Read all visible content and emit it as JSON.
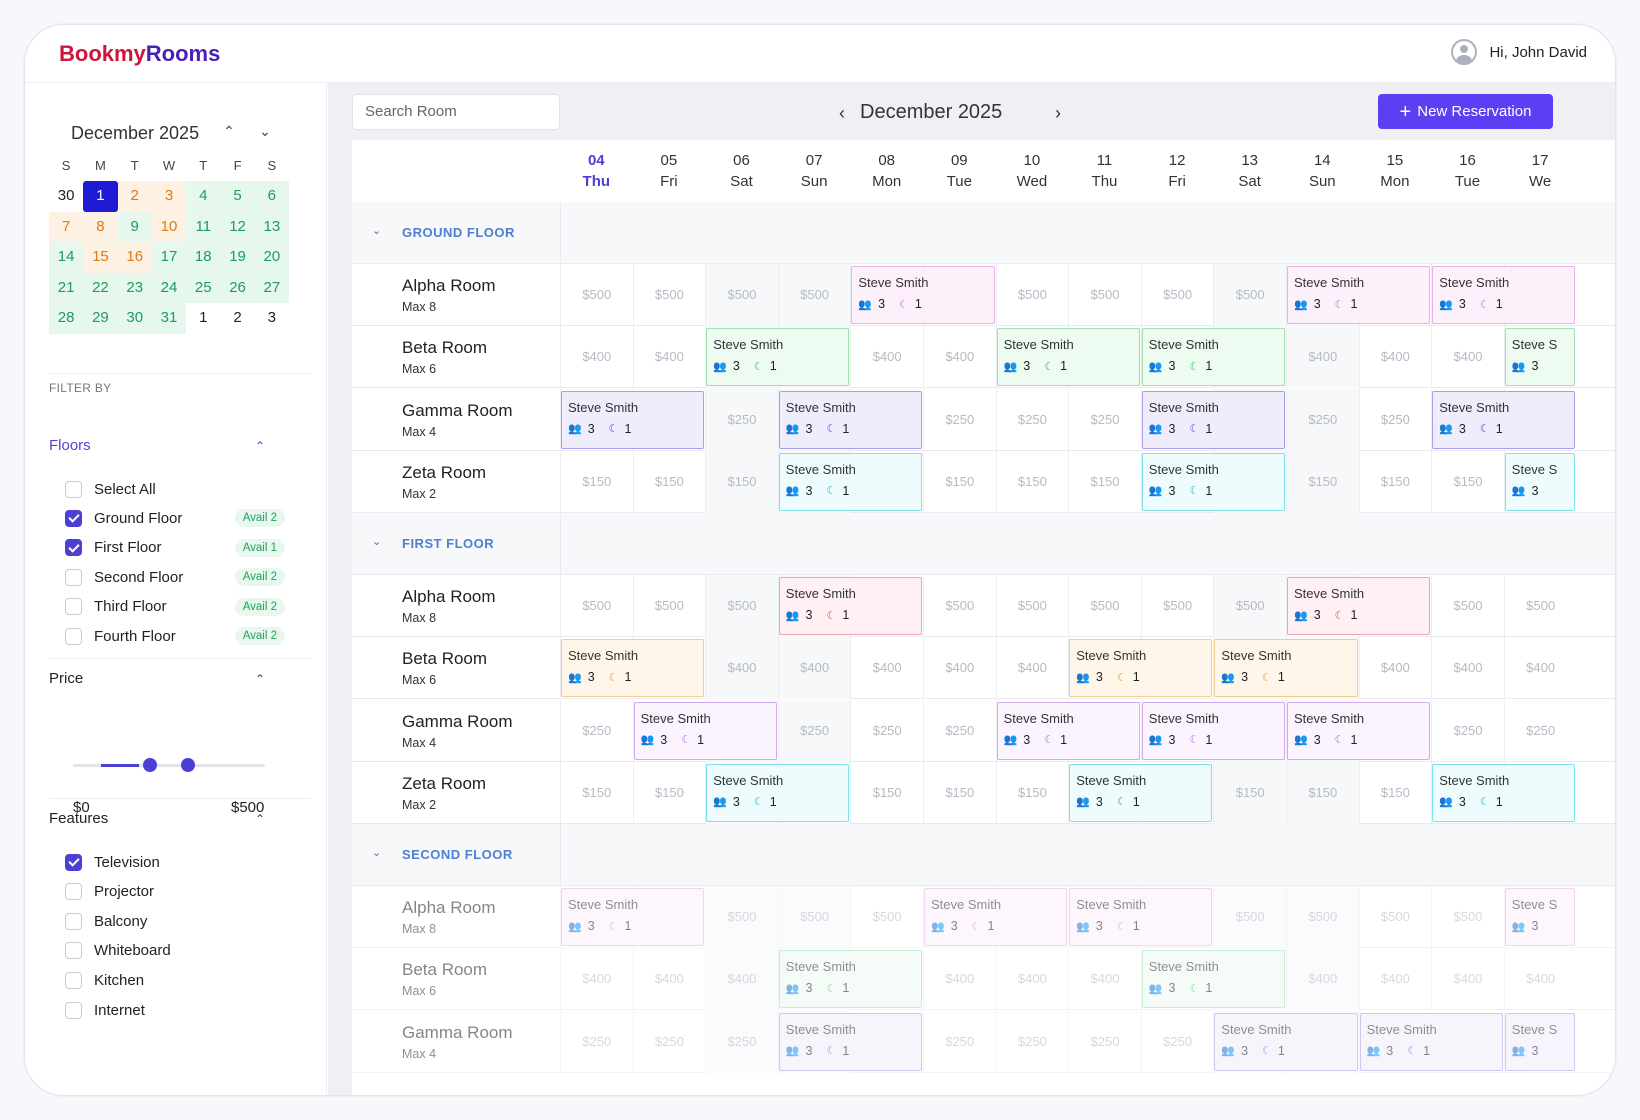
{
  "brand": {
    "part1": "Bookmy",
    "part2": "Rooms"
  },
  "user": {
    "greeting": "Hi, John David"
  },
  "mini_calendar": {
    "title": "December 2025",
    "dows": [
      "S",
      "M",
      "T",
      "W",
      "T",
      "F",
      "S"
    ],
    "weeks": [
      [
        {
          "d": "30",
          "s": ""
        },
        {
          "d": "1",
          "s": "sel"
        },
        {
          "d": "2",
          "s": "orange"
        },
        {
          "d": "3",
          "s": "orange"
        },
        {
          "d": "4",
          "s": "green"
        },
        {
          "d": "5",
          "s": "green"
        },
        {
          "d": "6",
          "s": "green"
        }
      ],
      [
        {
          "d": "7",
          "s": "orange"
        },
        {
          "d": "8",
          "s": "orange"
        },
        {
          "d": "9",
          "s": "green"
        },
        {
          "d": "10",
          "s": "orange"
        },
        {
          "d": "11",
          "s": "green"
        },
        {
          "d": "12",
          "s": "green"
        },
        {
          "d": "13",
          "s": "green"
        }
      ],
      [
        {
          "d": "14",
          "s": "green"
        },
        {
          "d": "15",
          "s": "orange"
        },
        {
          "d": "16",
          "s": "orange"
        },
        {
          "d": "17",
          "s": "green"
        },
        {
          "d": "18",
          "s": "green"
        },
        {
          "d": "19",
          "s": "green"
        },
        {
          "d": "20",
          "s": "green"
        }
      ],
      [
        {
          "d": "21",
          "s": "green"
        },
        {
          "d": "22",
          "s": "green"
        },
        {
          "d": "23",
          "s": "green"
        },
        {
          "d": "24",
          "s": "green"
        },
        {
          "d": "25",
          "s": "green"
        },
        {
          "d": "26",
          "s": "green"
        },
        {
          "d": "27",
          "s": "green"
        }
      ],
      [
        {
          "d": "28",
          "s": "green"
        },
        {
          "d": "29",
          "s": "green"
        },
        {
          "d": "30",
          "s": "green"
        },
        {
          "d": "31",
          "s": "green"
        },
        {
          "d": "1",
          "s": ""
        },
        {
          "d": "2",
          "s": ""
        },
        {
          "d": "3",
          "s": ""
        }
      ]
    ]
  },
  "filters": {
    "label": "FILTER BY",
    "floors_title": "Floors",
    "floors": [
      {
        "label": "Select All",
        "checked": false,
        "avail": ""
      },
      {
        "label": "Ground Floor",
        "checked": true,
        "avail": "Avail 2"
      },
      {
        "label": "First Floor",
        "checked": true,
        "avail": "Avail 1"
      },
      {
        "label": "Second Floor",
        "checked": false,
        "avail": "Avail 2"
      },
      {
        "label": "Third Floor",
        "checked": false,
        "avail": "Avail 2"
      },
      {
        "label": "Fourth Floor",
        "checked": false,
        "avail": "Avail 2"
      }
    ],
    "price_title": "Price",
    "price_min": "$0",
    "price_max": "$500",
    "features_title": "Features",
    "features": [
      {
        "label": "Television",
        "checked": true
      },
      {
        "label": "Projector",
        "checked": false
      },
      {
        "label": "Balcony",
        "checked": false
      },
      {
        "label": "Whiteboard",
        "checked": false
      },
      {
        "label": "Kitchen",
        "checked": false
      },
      {
        "label": "Internet",
        "checked": false
      }
    ]
  },
  "toolbar": {
    "search_placeholder": "Search Room",
    "month": "December 2025",
    "new_label": "New Reservation"
  },
  "days": [
    {
      "n": "04",
      "w": "Thu"
    },
    {
      "n": "05",
      "w": "Fri"
    },
    {
      "n": "06",
      "w": "Sat"
    },
    {
      "n": "07",
      "w": "Sun"
    },
    {
      "n": "08",
      "w": "Mon"
    },
    {
      "n": "09",
      "w": "Tue"
    },
    {
      "n": "10",
      "w": "Wed"
    },
    {
      "n": "11",
      "w": "Thu"
    },
    {
      "n": "12",
      "w": "Fri"
    },
    {
      "n": "13",
      "w": "Sat"
    },
    {
      "n": "14",
      "w": "Sun"
    },
    {
      "n": "15",
      "w": "Mon"
    },
    {
      "n": "16",
      "w": "Tue"
    },
    {
      "n": "17",
      "w": "We"
    }
  ],
  "floors_grid": [
    {
      "name": "GROUND FLOOR",
      "rooms": [
        {
          "name": "Alpha Room",
          "max": "Max 8",
          "price": "$500",
          "color": "pink",
          "bookings": [
            {
              "start": 4,
              "span": 2,
              "guest": "Steve Smith",
              "guests": "3",
              "nights": "1"
            },
            {
              "start": 10,
              "span": 2,
              "guest": "Steve Smith",
              "guests": "3",
              "nights": "1"
            },
            {
              "start": 12,
              "span": 2,
              "guest": "Steve Smith",
              "guests": "3",
              "nights": "1"
            }
          ]
        },
        {
          "name": "Beta Room",
          "max": "Max 6",
          "price": "$400",
          "color": "green",
          "bookings": [
            {
              "start": 2,
              "span": 2,
              "guest": "Steve Smith",
              "guests": "3",
              "nights": "1"
            },
            {
              "start": 6,
              "span": 2,
              "guest": "Steve Smith",
              "guests": "3",
              "nights": "1"
            },
            {
              "start": 8,
              "span": 2,
              "guest": "Steve Smith",
              "guests": "3",
              "nights": "1"
            },
            {
              "start": 13,
              "span": 1,
              "guest": "Steve S",
              "guests": "3",
              "nights": ""
            }
          ]
        },
        {
          "name": "Gamma Room",
          "max": "Max 4",
          "price": "$250",
          "color": "purple",
          "bookings": [
            {
              "start": 0,
              "span": 2,
              "guest": "Steve Smith",
              "guests": "3",
              "nights": "1"
            },
            {
              "start": 3,
              "span": 2,
              "guest": "Steve Smith",
              "guests": "3",
              "nights": "1"
            },
            {
              "start": 8,
              "span": 2,
              "guest": "Steve Smith",
              "guests": "3",
              "nights": "1"
            },
            {
              "start": 12,
              "span": 2,
              "guest": "Steve Smith",
              "guests": "3",
              "nights": "1"
            }
          ]
        },
        {
          "name": "Zeta Room",
          "max": "Max 2",
          "price": "$150",
          "color": "cyan",
          "bookings": [
            {
              "start": 3,
              "span": 2,
              "guest": "Steve Smith",
              "guests": "3",
              "nights": "1"
            },
            {
              "start": 8,
              "span": 2,
              "guest": "Steve Smith",
              "guests": "3",
              "nights": "1"
            },
            {
              "start": 13,
              "span": 1,
              "guest": "Steve S",
              "guests": "3",
              "nights": ""
            }
          ]
        }
      ]
    },
    {
      "name": "FIRST FLOOR",
      "rooms": [
        {
          "name": "Alpha Room",
          "max": "Max 8",
          "price": "$500",
          "color": "red",
          "bookings": [
            {
              "start": 3,
              "span": 2,
              "guest": "Steve Smith",
              "guests": "3",
              "nights": "1"
            },
            {
              "start": 10,
              "span": 2,
              "guest": "Steve Smith",
              "guests": "3",
              "nights": "1"
            }
          ]
        },
        {
          "name": "Beta Room",
          "max": "Max 6",
          "price": "$400",
          "color": "orange",
          "bookings": [
            {
              "start": 0,
              "span": 2,
              "guest": "Steve Smith",
              "guests": "3",
              "nights": "1"
            },
            {
              "start": 7,
              "span": 2,
              "guest": "Steve Smith",
              "guests": "3",
              "nights": "1"
            },
            {
              "start": 9,
              "span": 2,
              "guest": "Steve Smith",
              "guests": "3",
              "nights": "1"
            }
          ]
        },
        {
          "name": "Gamma Room",
          "max": "Max 4",
          "price": "$250",
          "color": "lilac",
          "bookings": [
            {
              "start": 1,
              "span": 2,
              "guest": "Steve Smith",
              "guests": "3",
              "nights": "1"
            },
            {
              "start": 6,
              "span": 2,
              "guest": "Steve Smith",
              "guests": "3",
              "nights": "1"
            },
            {
              "start": 8,
              "span": 2,
              "guest": "Steve Smith",
              "guests": "3",
              "nights": "1"
            },
            {
              "start": 10,
              "span": 2,
              "guest": "Steve Smith",
              "guests": "3",
              "nights": "1"
            }
          ]
        },
        {
          "name": "Zeta Room",
          "max": "Max 2",
          "price": "$150",
          "color": "cyan",
          "bookings": [
            {
              "start": 2,
              "span": 2,
              "guest": "Steve Smith",
              "guests": "3",
              "nights": "1"
            },
            {
              "start": 7,
              "span": 2,
              "guest": "Steve Smith",
              "guests": "3",
              "nights": "1"
            },
            {
              "start": 12,
              "span": 2,
              "guest": "Steve Smith",
              "guests": "3",
              "nights": "1"
            }
          ]
        }
      ]
    },
    {
      "name": "SECOND FLOOR",
      "dim": true,
      "rooms": [
        {
          "name": "Alpha Room",
          "max": "Max 8",
          "price": "$500",
          "color": "pink",
          "bookings": [
            {
              "start": 0,
              "span": 2,
              "guest": "Steve Smith",
              "guests": "3",
              "nights": "1"
            },
            {
              "start": 5,
              "span": 2,
              "guest": "Steve Smith",
              "guests": "3",
              "nights": "1"
            },
            {
              "start": 7,
              "span": 2,
              "guest": "Steve Smith",
              "guests": "3",
              "nights": "1"
            },
            {
              "start": 13,
              "span": 1,
              "guest": "Steve S",
              "guests": "3",
              "nights": ""
            }
          ]
        },
        {
          "name": "Beta Room",
          "max": "Max 6",
          "price": "$400",
          "color": "green",
          "bookings": [
            {
              "start": 3,
              "span": 2,
              "guest": "Steve Smith",
              "guests": "3",
              "nights": "1"
            },
            {
              "start": 8,
              "span": 2,
              "guest": "Steve Smith",
              "guests": "3",
              "nights": "1"
            }
          ]
        },
        {
          "name": "Gamma Room",
          "max": "Max 4",
          "price": "$250",
          "color": "purple",
          "bookings": [
            {
              "start": 3,
              "span": 2,
              "guest": "Steve Smith",
              "guests": "3",
              "nights": "1"
            },
            {
              "start": 9,
              "span": 2,
              "guest": "Steve Smith",
              "guests": "3",
              "nights": "1"
            },
            {
              "start": 11,
              "span": 2,
              "guest": "Steve Smith",
              "guests": "3",
              "nights": "1"
            },
            {
              "start": 13,
              "span": 1,
              "guest": "Steve S",
              "guests": "3",
              "nights": ""
            }
          ]
        }
      ]
    }
  ]
}
